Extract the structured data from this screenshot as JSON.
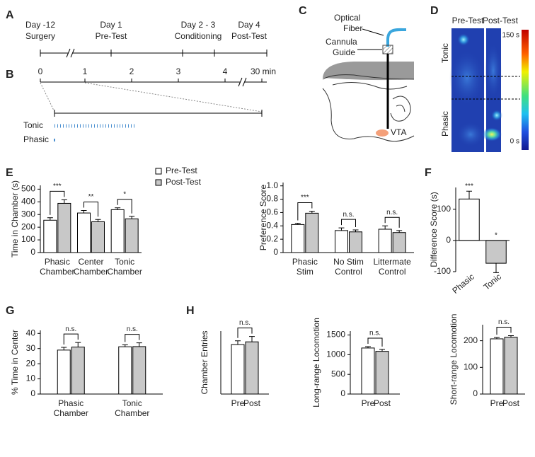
{
  "timeline": {
    "panel": "A",
    "events": [
      [
        "Day -12",
        "Surgery"
      ],
      [
        "Day 1",
        "Pre-Test"
      ],
      [
        "Day 2 - 3",
        "Conditioning"
      ],
      [
        "Day 4",
        "Post-Test"
      ]
    ]
  },
  "protocol": {
    "panel": "B",
    "ticks": [
      "0",
      "1",
      "2",
      "3",
      "4",
      "30 min"
    ],
    "rows": [
      "Tonic",
      "Phasic"
    ]
  },
  "schematic": {
    "panel": "C",
    "fiber": [
      "Optical",
      "Fiber"
    ],
    "cannula": [
      "Cannula",
      "Guide"
    ],
    "target": "VTA"
  },
  "heatmap": {
    "panel": "D",
    "columns": [
      "Pre-Test",
      "Post-Test"
    ],
    "rows": [
      "Tonic",
      "Phasic"
    ],
    "colorbar": [
      "150 s",
      "0 s"
    ]
  },
  "chart_data": [
    {
      "type": "bar",
      "panel": "E",
      "ylabel": "Time in Chamber (s)",
      "categories": [
        [
          "Phasic",
          "Chamber"
        ],
        [
          "Center",
          "Chamber"
        ],
        [
          "Tonic",
          "Chamber"
        ]
      ],
      "series": [
        {
          "name": "Pre-Test",
          "color": "#ffffff",
          "values": [
            255,
            312,
            338
          ],
          "errors": [
            20,
            20,
            15
          ]
        },
        {
          "name": "Post-Test",
          "color": "#c8c8c8",
          "values": [
            388,
            243,
            266
          ],
          "errors": [
            28,
            18,
            20
          ]
        }
      ],
      "significance": [
        "***",
        "**",
        "*"
      ],
      "ylim": [
        0,
        530
      ],
      "yticks": [
        0,
        100,
        200,
        300,
        400,
        500
      ],
      "legend": "upper right"
    },
    {
      "type": "bar",
      "ylabel": "Preference Score",
      "categories": [
        [
          "Phasic",
          "Stim"
        ],
        [
          "No Stim",
          "Control"
        ],
        [
          "Littermate",
          "Control"
        ]
      ],
      "series": [
        {
          "color": "#ffffff",
          "values": [
            0.42,
            0.33,
            0.35
          ],
          "errors": [
            0.02,
            0.04,
            0.05
          ]
        },
        {
          "color": "#c8c8c8",
          "values": [
            0.59,
            0.31,
            0.3
          ],
          "errors": [
            0.03,
            0.03,
            0.03
          ]
        }
      ],
      "significance": [
        "***",
        "n.s.",
        "n.s."
      ],
      "ylim": [
        0,
        1.05
      ],
      "yticks": [
        0,
        0.2,
        0.4,
        0.6,
        0.8,
        {
          "value": 1,
          "label": "1.0"
        }
      ]
    },
    {
      "type": "bar",
      "panel": "F",
      "ylabel": "Difference Score (s)",
      "categories": [
        "Phasic",
        "Tonic"
      ],
      "colors": [
        "#ffffff",
        "#c8c8c8"
      ],
      "values": [
        133,
        -73
      ],
      "errors": [
        25,
        30
      ],
      "significance": [
        "***",
        "*"
      ],
      "ylim": [
        -100,
        170
      ],
      "yticks": [
        -100,
        0,
        100
      ],
      "xtick_rotation": -40
    },
    {
      "type": "bar",
      "panel": "G",
      "ylabel": "% Time in Center",
      "categories": [
        [
          "Phasic",
          "Chamber"
        ],
        [
          "Tonic",
          "Chamber"
        ]
      ],
      "series": [
        {
          "color": "#ffffff",
          "values": [
            29,
            31.2
          ],
          "errors": [
            1.8,
            1.3
          ]
        },
        {
          "color": "#c8c8c8",
          "values": [
            31,
            31.3
          ],
          "errors": [
            3,
            2.5
          ]
        }
      ],
      "significance": [
        "n.s.",
        "n.s."
      ],
      "ylim": [
        0,
        42
      ],
      "yticks": [
        0,
        10,
        20,
        30,
        40
      ]
    },
    {
      "type": "bar",
      "panel": "H",
      "ylabel": "Chamber Entries",
      "categories": [
        "Pre",
        "Post"
      ],
      "colors": [
        "#ffffff",
        "#c8c8c8"
      ],
      "values": [
        92,
        97
      ],
      "errors": [
        7,
        10
      ],
      "significance": "n.s.",
      "ylim": [
        0,
        117
      ]
    },
    {
      "type": "bar",
      "ylabel": "Long-range Locomotion",
      "categories": [
        "Pre",
        "Post"
      ],
      "colors": [
        "#ffffff",
        "#c8c8c8"
      ],
      "values": [
        1170,
        1085
      ],
      "errors": [
        35,
        50
      ],
      "significance": "n.s.",
      "ylim": [
        0,
        1600
      ],
      "yticks": [
        0,
        500,
        1000,
        1500
      ]
    },
    {
      "type": "bar",
      "ylabel": "Short-range Locomotion",
      "categories": [
        "Pre",
        "Post"
      ],
      "colors": [
        "#ffffff",
        "#c8c8c8"
      ],
      "values": [
        207,
        213
      ],
      "errors": [
        5,
        6
      ],
      "significance": "n.s.",
      "ylim": [
        0,
        260
      ],
      "yticks": [
        0,
        100,
        200
      ]
    }
  ]
}
